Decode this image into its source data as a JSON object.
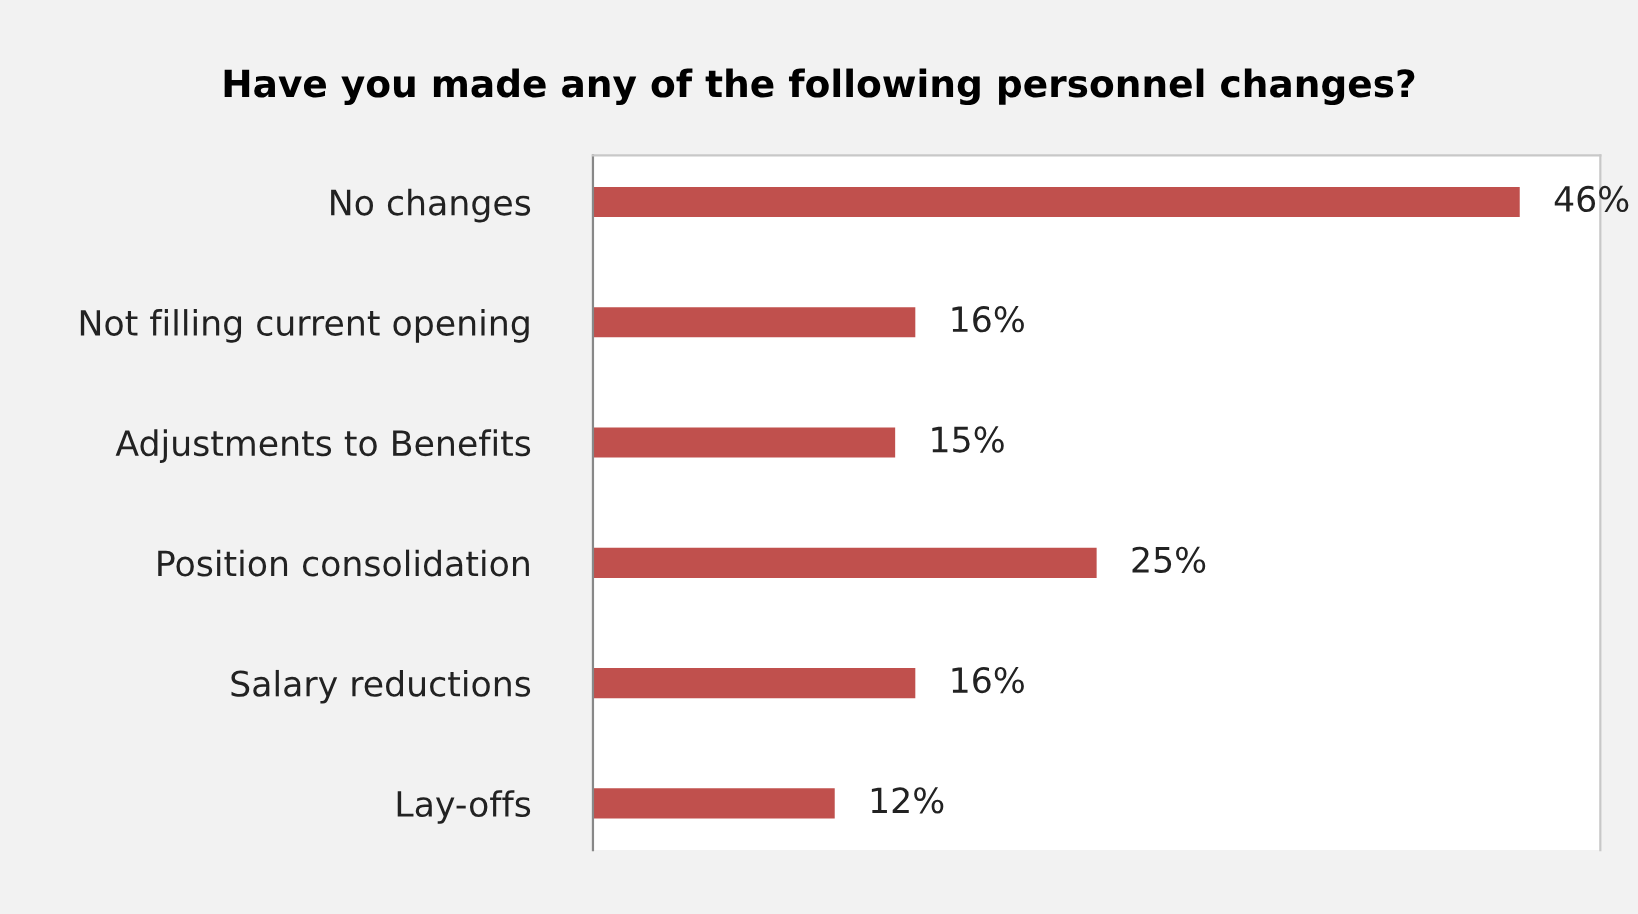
{
  "chart_data": {
    "type": "bar",
    "orientation": "horizontal",
    "title": "Have you made any of the following personnel changes?",
    "categories": [
      "No changes",
      "Not filling current opening",
      "Adjustments to Benefits",
      "Position consolidation",
      "Salary reductions",
      "Lay-offs"
    ],
    "values": [
      46,
      16,
      15,
      25,
      16,
      12
    ],
    "value_labels": [
      "46%",
      "16%",
      "15%",
      "25%",
      "16%",
      "12%"
    ],
    "color": "#c0504d",
    "xlim": [
      0,
      50
    ],
    "tick_labels": "y",
    "grid": false,
    "legend": false
  }
}
